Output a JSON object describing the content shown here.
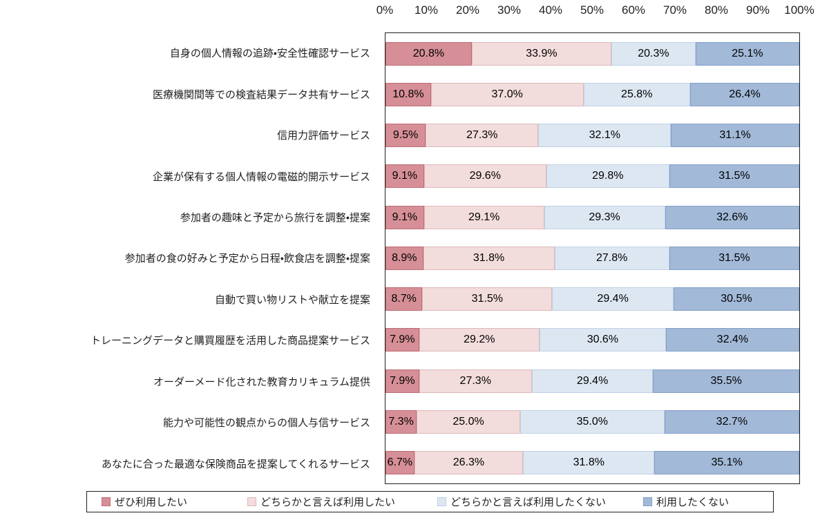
{
  "chart_data": {
    "type": "bar",
    "stacked": true,
    "orientation": "horizontal",
    "title": "",
    "xlabel": "",
    "ylabel": "",
    "x_range": [
      0,
      100
    ],
    "grid": false,
    "legend_position": "bottom",
    "x_axis_ticks": [
      "0%",
      "10%",
      "20%",
      "30%",
      "40%",
      "50%",
      "60%",
      "70%",
      "80%",
      "90%",
      "100%"
    ],
    "categories": [
      "自身の個人情報の追跡・安全性確認サービス",
      "医療機関間等での検査結果データ共有サービス",
      "信用力評価サービス",
      "企業が保有する個人情報の電磁的開示サービス",
      "参加者の趣味と予定から旅行を調整・提案",
      "参加者の食の好みと予定から日程・飲食店を調整・提案",
      "自動で買い物リストや献立を提案",
      "トレーニングデータと購買履歴を活用した商品提案サービス",
      "オーダーメード化された教育カリキュラム提供",
      "能力や可能性の観点からの個人与信サービス",
      "あなたに合った最適な保険商品を提案してくれるサービス"
    ],
    "series": [
      {
        "name": "ぜひ利用したい",
        "fill": "#d68f96",
        "border": "#bd6b74",
        "values": [
          20.8,
          10.8,
          9.5,
          9.1,
          9.1,
          8.9,
          8.7,
          7.9,
          7.9,
          7.3,
          6.7
        ],
        "labels": [
          "20.8%",
          "10.8%",
          "9.5%",
          "9.1%",
          "9.1%",
          "8.9%",
          "8.7%",
          "7.9%",
          "7.9%",
          "7.3%",
          "6.7%"
        ]
      },
      {
        "name": "どちらかと言えば利用したい",
        "fill": "#f3dcdc",
        "border": "#ddb9bb",
        "values": [
          33.9,
          37.0,
          27.3,
          29.6,
          29.1,
          31.8,
          31.5,
          29.2,
          27.3,
          25.0,
          26.3
        ],
        "labels": [
          "33.9%",
          "37.0%",
          "27.3%",
          "29.6%",
          "29.1%",
          "31.8%",
          "31.5%",
          "29.2%",
          "27.3%",
          "25.0%",
          "26.3%"
        ]
      },
      {
        "name": "どちらかと言えば利用したくない",
        "fill": "#dde7f2",
        "border": "#bed1e7",
        "values": [
          20.3,
          25.8,
          32.1,
          29.8,
          29.3,
          27.8,
          29.4,
          30.6,
          29.4,
          35.0,
          31.8
        ],
        "labels": [
          "20.3%",
          "25.8%",
          "32.1%",
          "29.8%",
          "29.3%",
          "27.8%",
          "29.4%",
          "30.6%",
          "29.4%",
          "35.0%",
          "31.8%"
        ]
      },
      {
        "name": "利用したくない",
        "fill": "#a2b9d8",
        "border": "#839fc6",
        "values": [
          25.1,
          26.4,
          31.1,
          31.5,
          32.6,
          31.5,
          30.5,
          32.4,
          35.5,
          32.7,
          35.1
        ],
        "labels": [
          "25.1%",
          "26.4%",
          "31.1%",
          "31.5%",
          "32.6%",
          "31.5%",
          "30.5%",
          "32.4%",
          "35.5%",
          "32.7%",
          "35.1%"
        ]
      }
    ]
  }
}
